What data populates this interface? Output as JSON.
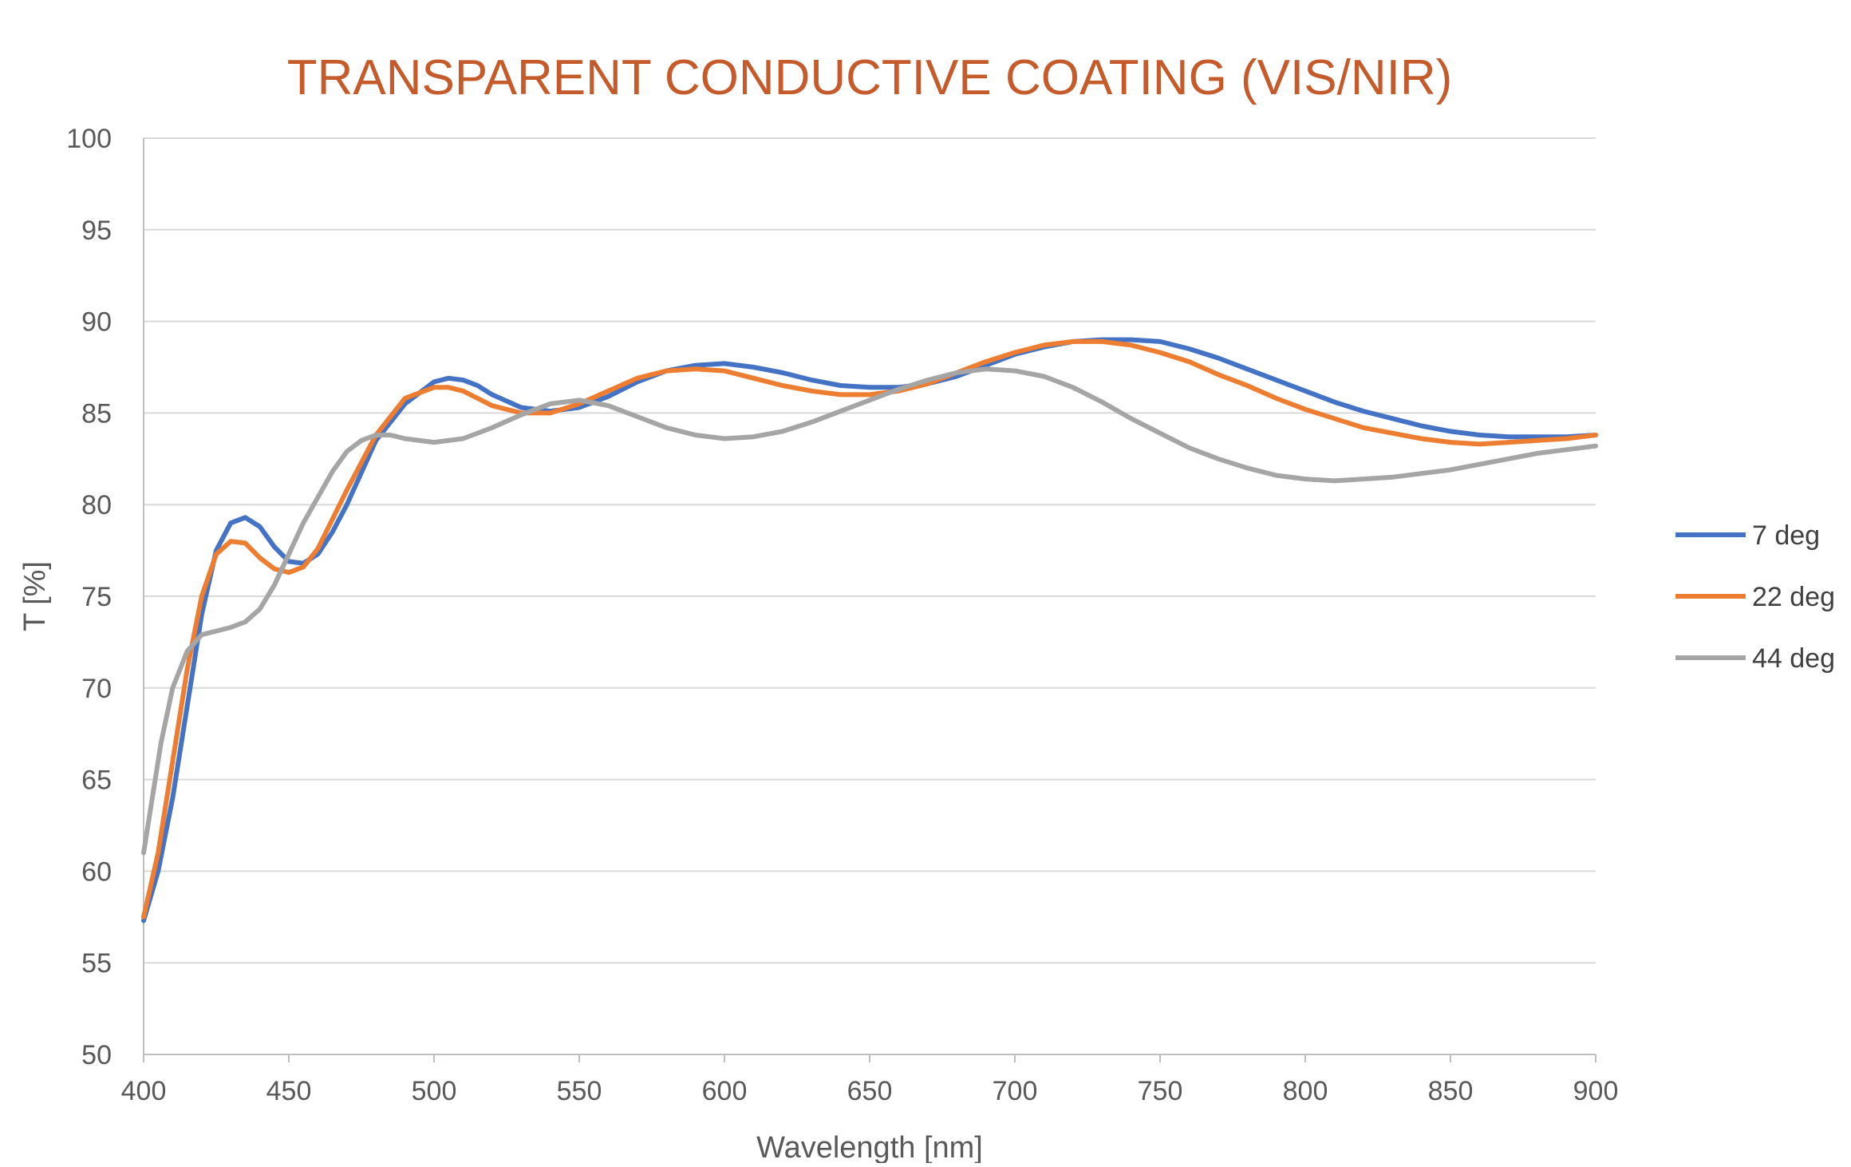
{
  "chart_data": {
    "type": "line",
    "title": "TRANSPARENT CONDUCTIVE COATING (VIS/NIR)",
    "xlabel": "Wavelength [nm]",
    "ylabel": "T [%]",
    "xlim": [
      400,
      900
    ],
    "ylim": [
      50,
      100
    ],
    "xticks": [
      "400",
      "450",
      "500",
      "550",
      "600",
      "650",
      "700",
      "750",
      "800",
      "850",
      "900"
    ],
    "yticks": [
      "50",
      "55",
      "60",
      "65",
      "70",
      "75",
      "80",
      "85",
      "90",
      "95",
      "100"
    ],
    "grid": true,
    "legend": "right",
    "title_color": "#C55A2B",
    "series": [
      {
        "name": "7 deg",
        "color": "#4472C4",
        "x": [
          400,
          405,
          410,
          415,
          420,
          425,
          430,
          435,
          440,
          445,
          450,
          455,
          460,
          465,
          470,
          480,
          490,
          500,
          505,
          510,
          515,
          520,
          530,
          540,
          550,
          560,
          570,
          580,
          590,
          600,
          610,
          620,
          630,
          640,
          650,
          660,
          670,
          680,
          690,
          700,
          710,
          720,
          730,
          740,
          750,
          760,
          770,
          780,
          790,
          800,
          810,
          820,
          830,
          840,
          850,
          860,
          870,
          880,
          890,
          900
        ],
        "y": [
          57.3,
          60,
          64,
          69,
          74,
          77.5,
          79,
          79.3,
          78.8,
          77.7,
          76.9,
          76.8,
          77.3,
          78.5,
          80,
          83.5,
          85.5,
          86.7,
          86.9,
          86.8,
          86.5,
          86,
          85.3,
          85.1,
          85.3,
          85.9,
          86.7,
          87.3,
          87.6,
          87.7,
          87.5,
          87.2,
          86.8,
          86.5,
          86.4,
          86.4,
          86.6,
          87,
          87.6,
          88.2,
          88.6,
          88.9,
          89.0,
          89.0,
          88.9,
          88.5,
          88,
          87.4,
          86.8,
          86.2,
          85.6,
          85.1,
          84.7,
          84.3,
          84.0,
          83.8,
          83.7,
          83.7,
          83.7,
          83.8
        ]
      },
      {
        "name": "22 deg",
        "color": "#ED7D31",
        "x": [
          400,
          405,
          410,
          415,
          420,
          425,
          430,
          435,
          440,
          445,
          450,
          455,
          460,
          465,
          470,
          480,
          490,
          500,
          505,
          510,
          515,
          520,
          530,
          540,
          550,
          560,
          570,
          580,
          590,
          600,
          610,
          620,
          630,
          640,
          650,
          660,
          670,
          680,
          690,
          700,
          710,
          720,
          730,
          740,
          750,
          760,
          770,
          780,
          790,
          800,
          810,
          820,
          830,
          840,
          850,
          860,
          870,
          880,
          890,
          900
        ],
        "y": [
          57.5,
          61,
          66,
          71,
          75,
          77.3,
          78,
          77.9,
          77.1,
          76.5,
          76.3,
          76.6,
          77.6,
          79.2,
          80.8,
          83.8,
          85.8,
          86.4,
          86.4,
          86.2,
          85.8,
          85.4,
          85.0,
          85.0,
          85.5,
          86.2,
          86.9,
          87.3,
          87.4,
          87.3,
          86.9,
          86.5,
          86.2,
          86.0,
          86.0,
          86.2,
          86.6,
          87.2,
          87.8,
          88.3,
          88.7,
          88.9,
          88.9,
          88.7,
          88.3,
          87.8,
          87.1,
          86.5,
          85.8,
          85.2,
          84.7,
          84.2,
          83.9,
          83.6,
          83.4,
          83.3,
          83.4,
          83.5,
          83.6,
          83.8
        ]
      },
      {
        "name": "44 deg",
        "color": "#A5A5A5",
        "x": [
          400,
          403,
          406,
          410,
          415,
          420,
          425,
          430,
          435,
          440,
          445,
          450,
          455,
          460,
          465,
          470,
          475,
          480,
          485,
          490,
          500,
          510,
          520,
          530,
          540,
          550,
          560,
          570,
          580,
          590,
          600,
          610,
          620,
          630,
          640,
          650,
          660,
          670,
          680,
          690,
          700,
          710,
          720,
          730,
          740,
          750,
          760,
          770,
          780,
          790,
          800,
          810,
          820,
          830,
          840,
          850,
          860,
          870,
          880,
          890,
          900
        ],
        "y": [
          61,
          64,
          67,
          70,
          72,
          72.9,
          73.1,
          73.3,
          73.6,
          74.3,
          75.6,
          77.3,
          79,
          80.4,
          81.8,
          82.9,
          83.5,
          83.8,
          83.8,
          83.6,
          83.4,
          83.6,
          84.2,
          84.9,
          85.5,
          85.7,
          85.4,
          84.8,
          84.2,
          83.8,
          83.6,
          83.7,
          84.0,
          84.5,
          85.1,
          85.7,
          86.3,
          86.8,
          87.2,
          87.4,
          87.3,
          87.0,
          86.4,
          85.6,
          84.7,
          83.9,
          83.1,
          82.5,
          82.0,
          81.6,
          81.4,
          81.3,
          81.4,
          81.5,
          81.7,
          81.9,
          82.2,
          82.5,
          82.8,
          83.0,
          83.2
        ]
      }
    ]
  }
}
